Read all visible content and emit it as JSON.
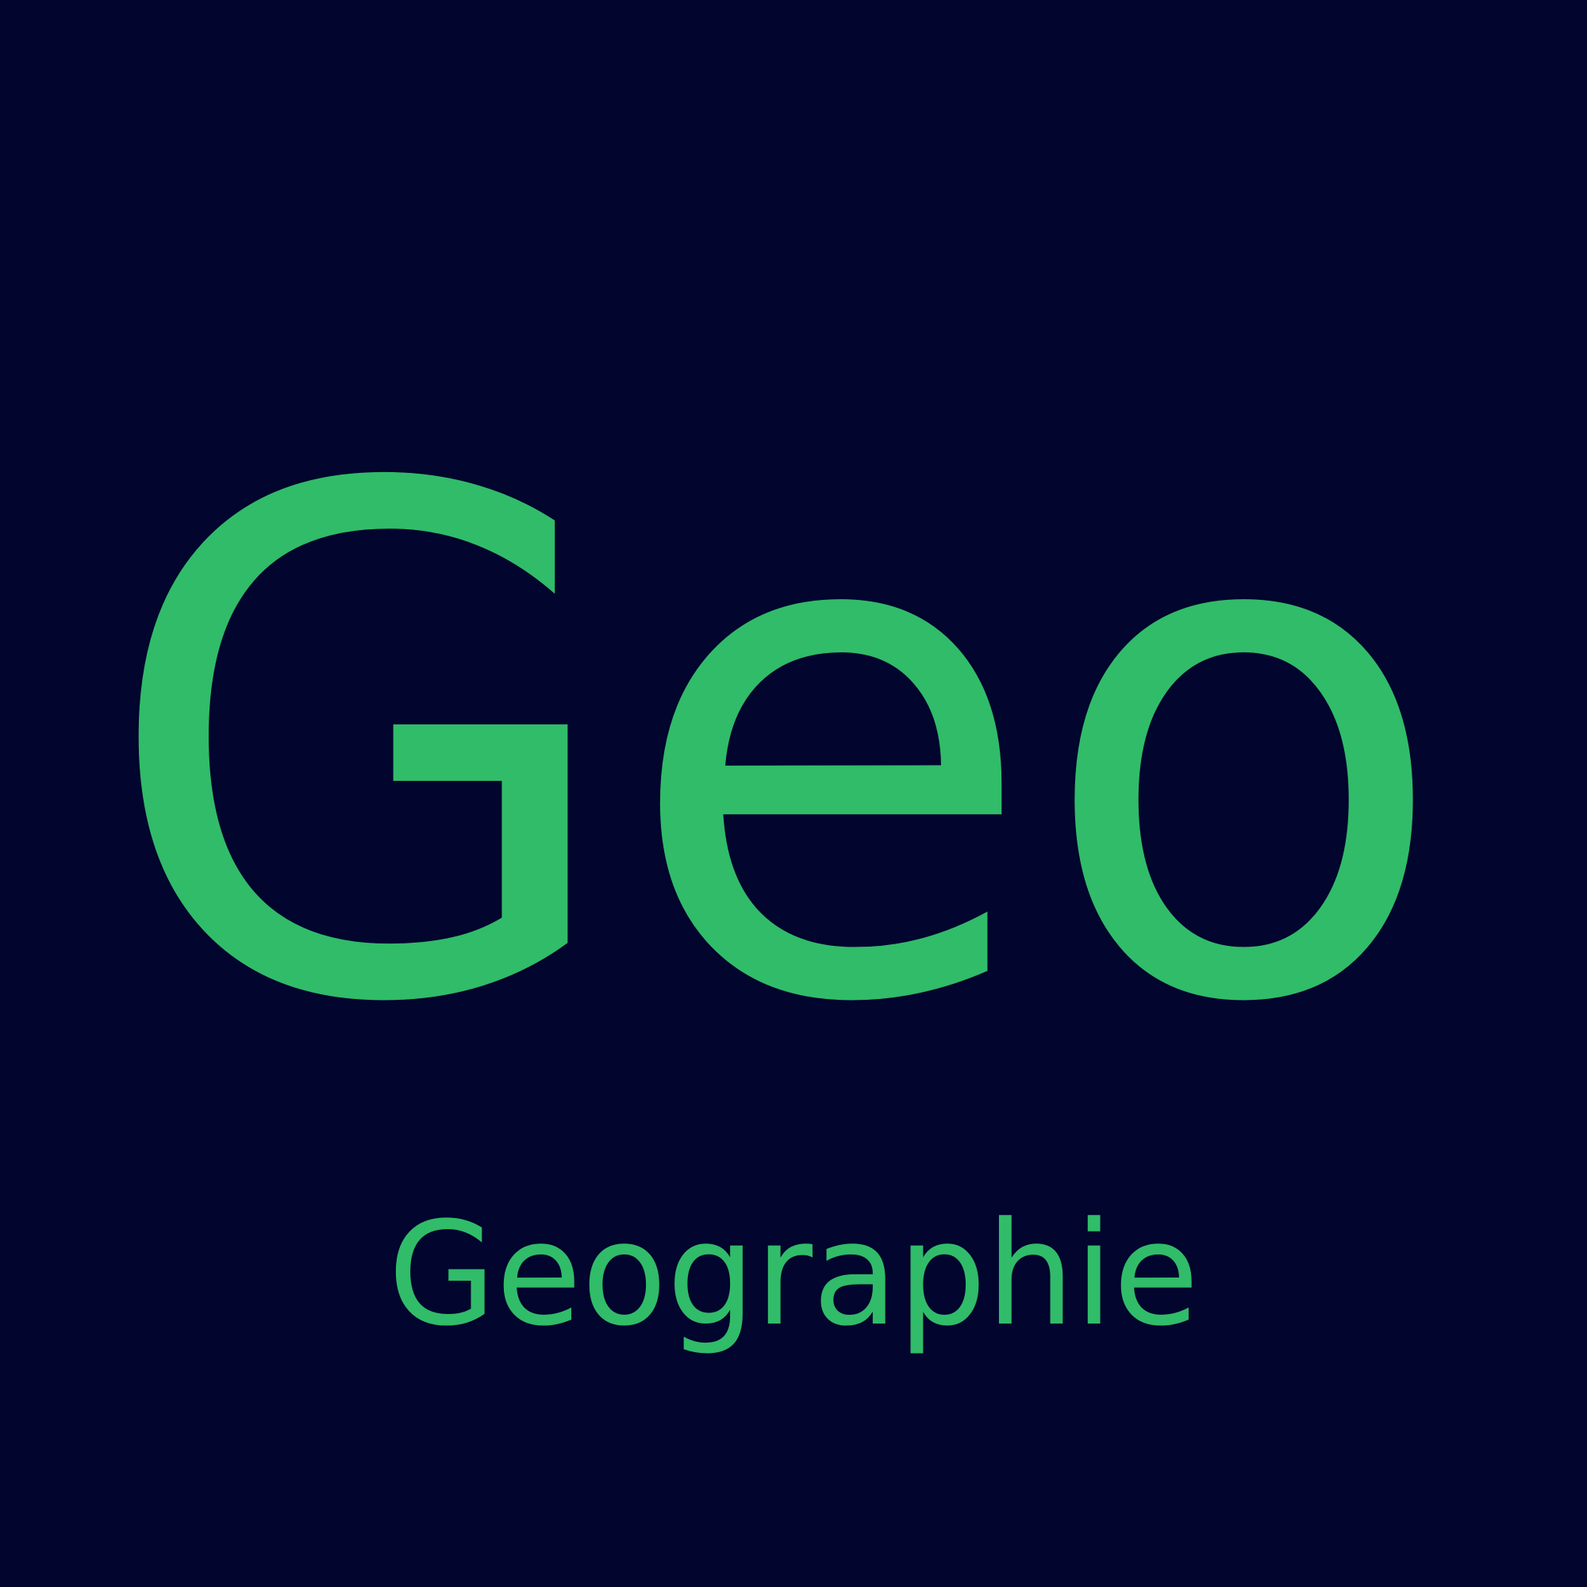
{
  "colors": {
    "background": "#02052e",
    "accent": "#31bc69"
  },
  "logo": {
    "title": "Geo",
    "subtitle": "Geographie"
  }
}
